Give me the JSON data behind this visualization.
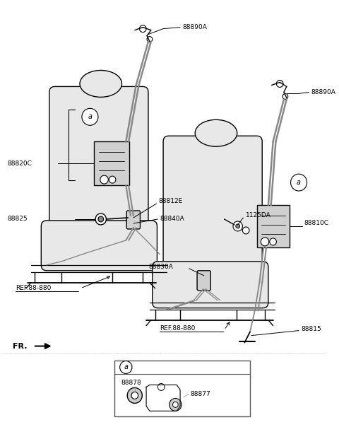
{
  "bg_color": "#ffffff",
  "line_color": "#000000",
  "labels": {
    "88890A_left": "88890A",
    "88820C": "88820C",
    "88825": "88825",
    "88812E": "88812E",
    "88840A": "88840A",
    "REF_left": "REF.88-880",
    "88830A": "88830A",
    "1125DA": "1125DA",
    "88890A_right": "88890A",
    "88810C": "88810C",
    "88815": "88815",
    "REF_right": "REF.88-880",
    "FR": "FR.",
    "88878": "88878",
    "88877": "88877",
    "a": "a"
  },
  "seat_fill": "#e8e8e8",
  "retractor_fill": "#d0d0d0",
  "label_fs": 6.5,
  "bold_fs": 8.0
}
